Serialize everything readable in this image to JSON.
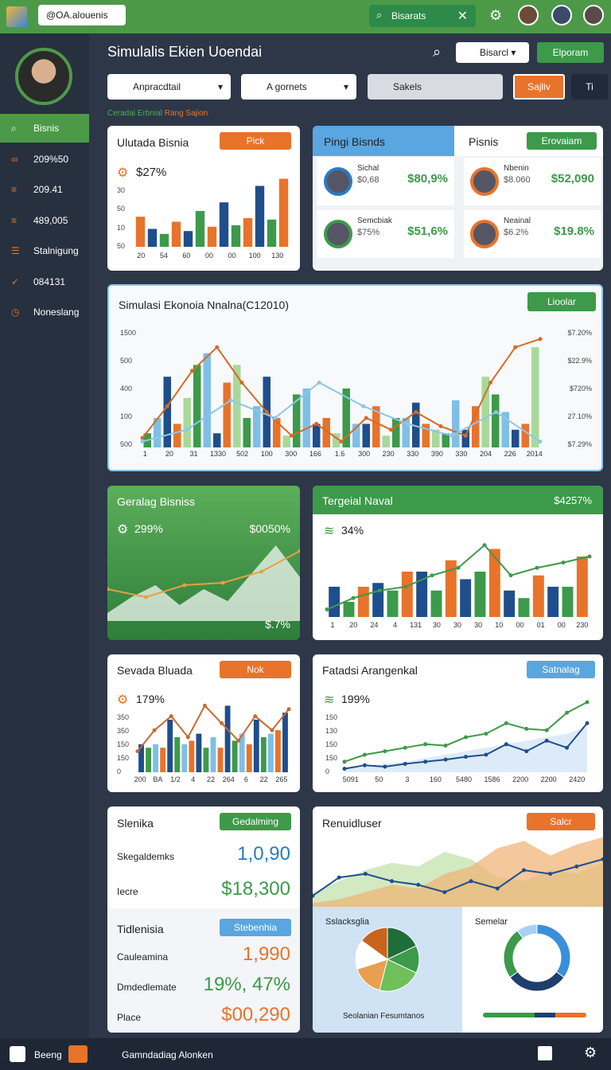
{
  "topbar": {
    "account": "@OA.alouenis",
    "search": "Bisarats"
  },
  "sidebar": {
    "items": [
      "Bisnis",
      "209%50",
      "209.41",
      "489,005",
      "Stalnigung",
      "084131",
      "Noneslang"
    ]
  },
  "header": {
    "title": "Simulalis Ekien Uoendai",
    "dropdown": "Bisarcl",
    "button": "Elporam"
  },
  "filters": {
    "select_1": "Anpracdtail",
    "select_2": "A gornets",
    "checkbox": "Sakels",
    "button": "Sajliv",
    "settings": "Ti",
    "caption_green": "Ceradai Erbnial",
    "caption_orange": "Rang Sajion"
  },
  "card_bisnia": {
    "title": "Ulutada Bisnia",
    "button": "Pick",
    "stat": "$27%",
    "y_labels": [
      "30",
      "50",
      "10",
      "50"
    ],
    "x_labels": [
      "20",
      "54",
      "60",
      "00",
      "00",
      "100",
      "130"
    ],
    "chart": {
      "ylim": [
        0,
        100
      ],
      "layers": [
        {
          "kind": "bar",
          "colors": [
            "#e8732a",
            "#1f4e8c",
            "#3c9a4a"
          ],
          "values": [
            42,
            25,
            18,
            35,
            22,
            50,
            28,
            62,
            30,
            40,
            85,
            38,
            95
          ]
        }
      ]
    }
  },
  "card_pingi": {
    "header": "Pingi Bisnds",
    "title": "Pisnis",
    "button": "Erovaiam",
    "kpis": [
      {
        "label": "Sichal",
        "sub": "$0,68",
        "value": "$80,9%"
      },
      {
        "label": "Nbenin",
        "sub": "$8.060",
        "value": "$52,090"
      },
      {
        "label": "Semcbiak",
        "sub": "$75%",
        "value": "$51,6%"
      },
      {
        "label": "Neainal",
        "sub": "$6.2%",
        "value": "$19.8%"
      }
    ]
  },
  "card_simulasi": {
    "title": "Simulasi Ekonoia Nnalna(C12010)",
    "button": "Lioolar",
    "y_labels": [
      "1500",
      "500",
      "400",
      "100",
      "500"
    ],
    "y2_labels": [
      "$7.20%",
      "$22.9%",
      "$720%",
      "27.10%",
      "$7.29%"
    ],
    "x_labels": [
      "1",
      "20",
      "31",
      "1330",
      "502",
      "100",
      "300",
      "166",
      "1.6",
      "300",
      "230",
      "330",
      "390",
      "330",
      "204",
      "226",
      "2014"
    ],
    "chart": {
      "ylim": [
        0,
        100
      ],
      "layers": [
        {
          "kind": "bar",
          "colors": [
            "#3c9a4a",
            "#7fbfe6",
            "#1f4e8c",
            "#e8732a",
            "#a8d89a"
          ],
          "values": [
            12,
            25,
            60,
            20,
            42,
            70,
            80,
            12,
            55,
            70,
            25,
            35,
            60,
            25,
            10,
            45,
            50,
            20,
            25,
            12,
            50,
            20,
            20,
            35,
            10,
            25,
            25,
            38,
            20,
            15,
            12,
            40,
            15,
            35,
            60,
            45,
            30,
            15,
            20,
            85
          ]
        },
        {
          "kind": "line",
          "color": "#d86a24",
          "values": [
            8,
            35,
            65,
            85,
            55,
            30,
            10,
            20,
            5,
            25,
            15,
            30,
            18,
            10,
            55,
            85,
            92
          ]
        },
        {
          "kind": "line",
          "color": "#8cc7ec",
          "values": [
            5,
            15,
            40,
            25,
            55,
            35,
            20,
            10,
            30,
            5
          ]
        }
      ]
    }
  },
  "card_geralag": {
    "title": "Geralag Bisniss",
    "stat": "299%",
    "stat_right": "$0050%",
    "footer": "$.7%",
    "chart": {
      "ylim": [
        0,
        100
      ],
      "layers": [
        {
          "kind": "area",
          "color": "#ffffff",
          "values": [
            10,
            30,
            45,
            20,
            40,
            25,
            60,
            95,
            55
          ]
        },
        {
          "kind": "line",
          "color": "#e8a040",
          "values": [
            40,
            30,
            45,
            48,
            62,
            88
          ]
        }
      ]
    }
  },
  "card_tergeial": {
    "title": "Tergeial Naval",
    "stat_right": "$4257%",
    "stat": "34%",
    "x_labels": [
      "1",
      "20",
      "24",
      "4",
      "131",
      "30",
      "30",
      "30",
      "10",
      "00",
      "01",
      "00",
      "230"
    ],
    "chart": {
      "ylim": [
        0,
        100
      ],
      "layers": [
        {
          "kind": "bar",
          "colors": [
            "#1f4e8c",
            "#3c9a4a",
            "#e8732a"
          ],
          "values": [
            40,
            20,
            40,
            45,
            35,
            60,
            60,
            35,
            75,
            50,
            60,
            90,
            35,
            25,
            55,
            40,
            40,
            80
          ]
        },
        {
          "kind": "line",
          "color": "#3c9a4a",
          "values": [
            10,
            25,
            35,
            40,
            55,
            65,
            95,
            55,
            65,
            72,
            80
          ]
        }
      ]
    }
  },
  "card_sevada": {
    "title": "Sevada Bluada",
    "button": "Nok",
    "stat": "179%",
    "y_labels": [
      "350",
      "350",
      "150",
      "150",
      "0"
    ],
    "x_labels": [
      "200",
      "BA",
      "1/2",
      "4",
      "22",
      "264",
      "6",
      "22",
      "265"
    ],
    "chart": {
      "ylim": [
        0,
        100
      ],
      "layers": [
        {
          "kind": "bar",
          "colors": [
            "#1f4e8c",
            "#3c9a4a",
            "#7fbfe6",
            "#e8732a"
          ],
          "values": [
            40,
            35,
            40,
            35,
            75,
            50,
            40,
            45,
            55,
            35,
            50,
            35,
            95,
            45,
            55,
            40,
            75,
            50,
            55,
            60,
            85
          ]
        },
        {
          "kind": "line",
          "color": "#c96a30",
          "values": [
            30,
            60,
            80,
            50,
            95,
            70,
            45,
            80,
            60,
            90
          ]
        }
      ]
    }
  },
  "card_fatadsi": {
    "title": "Fatadsi Arangenkal",
    "button": "Satnalag",
    "stat": "199%",
    "y_labels": [
      "150",
      "130",
      "150",
      "150",
      "0"
    ],
    "x_labels": [
      "5091",
      "50",
      "3",
      "160",
      "5480",
      "1586",
      "2200",
      "2200",
      "2420"
    ],
    "chart": {
      "ylim": [
        0,
        100
      ],
      "layers": [
        {
          "kind": "area",
          "color": "#cfe3f5",
          "values": [
            5,
            8,
            12,
            15,
            20,
            25,
            30,
            35,
            40,
            45,
            50,
            55,
            65
          ]
        },
        {
          "kind": "line",
          "color": "#3c9a4a",
          "values": [
            15,
            25,
            30,
            35,
            40,
            38,
            50,
            55,
            70,
            62,
            60,
            85,
            100
          ]
        },
        {
          "kind": "line",
          "color": "#1f4e8c",
          "values": [
            5,
            10,
            8,
            12,
            15,
            18,
            22,
            25,
            40,
            30,
            45,
            35,
            70
          ]
        }
      ]
    }
  },
  "card_slenika": {
    "title": "Slenika",
    "button": "Gedalming",
    "rows": [
      {
        "label": "Skegaldemks",
        "value": "1,0,90",
        "color": "#2a7ac0"
      },
      {
        "label": "Iecre",
        "value": "$18,300",
        "color": "#3c9a4a"
      }
    ],
    "title_2": "Tidlenisia",
    "button_2": "Stebenhia",
    "rows_2": [
      {
        "label": "Cauleamina",
        "value": "1,990",
        "color": "#e8732a"
      },
      {
        "label": "Dmdedlemate",
        "value": "19%, 47%",
        "color": "#3c9a4a"
      },
      {
        "label": "Place",
        "value": "$00,290",
        "color": "#e8732a"
      }
    ]
  },
  "card_renuid": {
    "title": "Renuidluser",
    "button": "Salcr",
    "chart": {
      "ylim": [
        0,
        100
      ],
      "layers": [
        {
          "kind": "area",
          "color": "#bfe0a8",
          "values": [
            20,
            35,
            50,
            60,
            55,
            75,
            65,
            40,
            35,
            50,
            45,
            60
          ]
        },
        {
          "kind": "area",
          "color": "#f0b070",
          "values": [
            5,
            10,
            20,
            30,
            25,
            45,
            55,
            80,
            90,
            70,
            85,
            95
          ]
        },
        {
          "kind": "line",
          "color": "#1f4e8c",
          "values": [
            15,
            40,
            45,
            35,
            30,
            20,
            35,
            25,
            50,
            45,
            55,
            65
          ]
        }
      ]
    },
    "pie_title": "Sslacksglia",
    "pie_caption": "Seolanian Fesumtanos",
    "pie": {
      "colors": [
        "#1f6e3a",
        "#3c9a4a",
        "#6fbf5a",
        "#e8a050",
        "#ffffff",
        "#c8641e"
      ],
      "values": [
        18,
        14,
        22,
        16,
        15,
        15
      ]
    },
    "donut_title": "Semelar",
    "donut": {
      "colors": [
        "#3a8fd8",
        "#1f3e6c",
        "#3c9a4a",
        "#a8d0f0"
      ],
      "values": [
        35,
        30,
        25,
        10
      ]
    }
  },
  "bottombar": {
    "label": "Beeng",
    "hint": "Gamndadiag Alonken"
  }
}
